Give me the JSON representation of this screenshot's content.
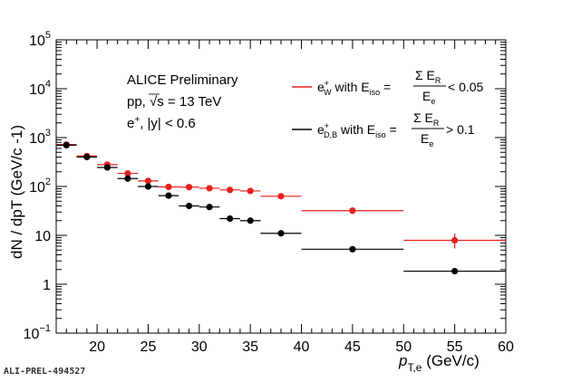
{
  "credit": "ALI-PREL-494527",
  "colors": {
    "wboson": "#e8201c",
    "heavy_flavour": "#000000",
    "axis": "#000000"
  },
  "chart_data": {
    "type": "scatter",
    "xlim": [
      16,
      60
    ],
    "ylim": [
      0.1,
      100000
    ],
    "yscale": "log",
    "grid": false,
    "legend_position": "top-right",
    "xlabel": {
      "var": "p",
      "sub": "T,e",
      "unit": " (GeV/c)"
    },
    "ylabel": "dN / dpT (GeV/c -1)",
    "xticks": [
      20,
      25,
      30,
      35,
      40,
      45,
      50,
      55,
      60
    ],
    "yticks": [
      {
        "value": 0.1,
        "base": "10",
        "exp": "−1"
      },
      {
        "value": 1,
        "base": "1",
        "exp": ""
      },
      {
        "value": 10,
        "base": "10",
        "exp": ""
      },
      {
        "value": 100,
        "base": "10",
        "exp": "2"
      },
      {
        "value": 1000,
        "base": "10",
        "exp": "3"
      },
      {
        "value": 10000,
        "base": "10",
        "exp": "4"
      },
      {
        "value": 100000,
        "base": "10",
        "exp": "5"
      }
    ],
    "annotations": {
      "line1": "ALICE Preliminary",
      "line2_prefix": "pp, ",
      "line2_sqrt": "√s",
      "line2_suffix": " = 13 TeV",
      "line3_prefix": "e",
      "line3_sup": "+",
      "line3_suffix": ", |y| < 0.6"
    },
    "legend": [
      {
        "particle": "e",
        "sup": "+",
        "sub": "W",
        "text": " with E",
        "iso": "iso",
        "eq": " = ",
        "num": "Σ E",
        "num_sub": "R",
        "den": "E",
        "den_sub": "e",
        "cut": " < 0.05"
      },
      {
        "particle": "e",
        "sup": "+",
        "sub": "D,B",
        "text": " with E",
        "iso": "iso",
        "eq": " = ",
        "num": "Σ E",
        "num_sub": "R",
        "den": "E",
        "den_sub": "e",
        "cut": " > 0.1"
      }
    ],
    "series": [
      {
        "color": "#e8201c",
        "points": [
          {
            "x": 17,
            "xlo": 16,
            "xhi": 18,
            "y": 720
          },
          {
            "x": 19,
            "xlo": 18,
            "xhi": 20,
            "y": 420
          },
          {
            "x": 21,
            "xlo": 20,
            "xhi": 22,
            "y": 280
          },
          {
            "x": 23,
            "xlo": 22,
            "xhi": 24,
            "y": 185
          },
          {
            "x": 25,
            "xlo": 24,
            "xhi": 26,
            "y": 130
          },
          {
            "x": 27,
            "xlo": 26,
            "xhi": 28,
            "y": 98
          },
          {
            "x": 29,
            "xlo": 28,
            "xhi": 30,
            "y": 97
          },
          {
            "x": 31,
            "xlo": 30,
            "xhi": 32,
            "y": 92
          },
          {
            "x": 33,
            "xlo": 32,
            "xhi": 34,
            "y": 85
          },
          {
            "x": 35,
            "xlo": 34,
            "xhi": 36,
            "y": 81
          },
          {
            "x": 38,
            "xlo": 36,
            "xhi": 40,
            "y": 63
          },
          {
            "x": 45,
            "xlo": 40,
            "xhi": 50,
            "y": 32
          },
          {
            "x": 55,
            "xlo": 50,
            "xhi": 60,
            "y": 7.9,
            "ylo": 5.4,
            "yhi": 11
          }
        ]
      },
      {
        "color": "#000000",
        "points": [
          {
            "x": 17,
            "xlo": 16,
            "xhi": 18,
            "y": 700
          },
          {
            "x": 19,
            "xlo": 18,
            "xhi": 20,
            "y": 400
          },
          {
            "x": 21,
            "xlo": 20,
            "xhi": 22,
            "y": 245
          },
          {
            "x": 23,
            "xlo": 22,
            "xhi": 24,
            "y": 145
          },
          {
            "x": 25,
            "xlo": 24,
            "xhi": 26,
            "y": 100
          },
          {
            "x": 27,
            "xlo": 26,
            "xhi": 28,
            "y": 65
          },
          {
            "x": 29,
            "xlo": 28,
            "xhi": 30,
            "y": 40
          },
          {
            "x": 31,
            "xlo": 30,
            "xhi": 32,
            "y": 38
          },
          {
            "x": 33,
            "xlo": 32,
            "xhi": 34,
            "y": 22
          },
          {
            "x": 35,
            "xlo": 34,
            "xhi": 36,
            "y": 20
          },
          {
            "x": 38,
            "xlo": 36,
            "xhi": 40,
            "y": 11
          },
          {
            "x": 45,
            "xlo": 40,
            "xhi": 50,
            "y": 5.2
          },
          {
            "x": 55,
            "xlo": 50,
            "xhi": 60,
            "y": 1.85,
            "ylo": 1.6,
            "yhi": 2.1
          }
        ]
      }
    ]
  }
}
